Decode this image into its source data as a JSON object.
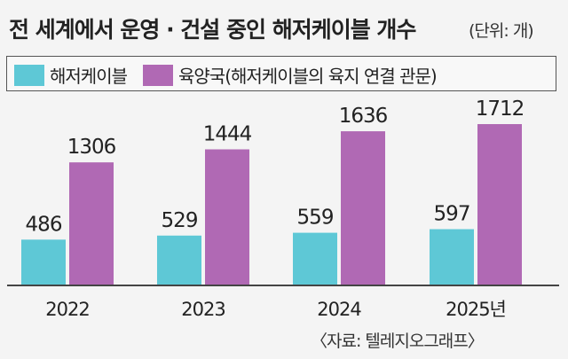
{
  "title": "전 세계에서 운영 · 건설 중인 해저케이블 개수",
  "unit": "(단위: 개)",
  "source": "〈자료: 텔레지오그래프〉",
  "colors": {
    "series1": "#5ec8d6",
    "series2": "#b069b4",
    "axis": "#444444"
  },
  "chart_data": {
    "type": "bar",
    "categories": [
      "2022",
      "2023",
      "2024",
      "2025년"
    ],
    "series": [
      {
        "name": "해저케이블",
        "values": [
          486,
          529,
          559,
          597
        ]
      },
      {
        "name": "육양국(해저케이블의 육지 연결 관문)",
        "values": [
          1306,
          1444,
          1636,
          1712
        ]
      }
    ],
    "data_labels": true,
    "ylim": [
      0,
      1712
    ],
    "grid": false,
    "legend_position": "top"
  }
}
